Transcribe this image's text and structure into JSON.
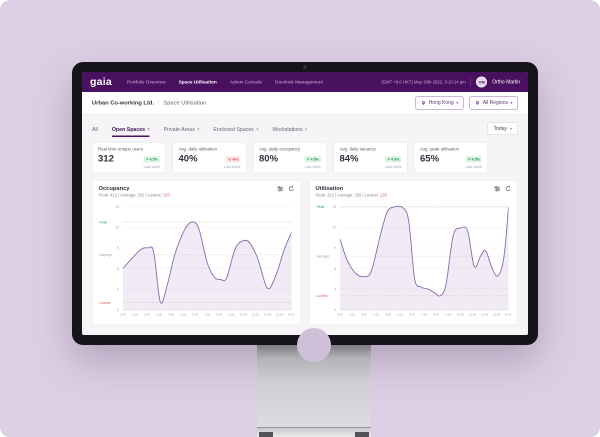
{
  "app": {
    "logo": "gaia",
    "nav_items": [
      {
        "label": "Portfolio Overview"
      },
      {
        "label": "Space Utilisation"
      },
      {
        "label": "Admin Console"
      },
      {
        "label": "Doorlock Management"
      }
    ],
    "active_nav": "Space Utilisation",
    "datetime": "(GMT +8:0 HKT) May 16th 2022, 3:10:14 pm",
    "user": {
      "initials": "OM",
      "name": "Ortho Martin"
    }
  },
  "breadcrumb": {
    "company": "Urban Co-working Ltd.",
    "separator": "|",
    "page": "Space Utilisation"
  },
  "filters": {
    "location": "Hong Kong",
    "region": "All Regions",
    "date_range": "Today"
  },
  "icons": {
    "caret_down": "▾",
    "arrow_up": "↗",
    "arrow_down": "↘"
  },
  "tabs": [
    {
      "label": "All"
    },
    {
      "label": "Open Spaces"
    },
    {
      "label": "Private Areas"
    },
    {
      "label": "Enclosed Spaces"
    },
    {
      "label": "Workstations"
    }
  ],
  "active_tab": "Open Spaces",
  "kpis": [
    {
      "label": "Real time unique users",
      "value": "312",
      "arrow": "↗",
      "delta": "4.5%",
      "period": "Last week"
    },
    {
      "label": "Avg. daily utilisation",
      "value": "40%",
      "arrow": "↘",
      "delta": "-6%",
      "period": "Last week"
    },
    {
      "label": "Avg. daily occupancy",
      "value": "80%",
      "arrow": "↗",
      "delta": "4.5%",
      "period": "Last week"
    },
    {
      "label": "Avg. daily vacancy",
      "value": "84%",
      "arrow": "↗",
      "delta": "4.9%",
      "period": "Last week"
    },
    {
      "label": "Avg. peak utilisation",
      "value": "65%",
      "arrow": "↗",
      "delta": "4.5%",
      "period": "Last week"
    }
  ],
  "charts": [
    {
      "title": "Occupancy",
      "stats_prefix": "Peak: 412  |  Average: 291  |  Lowest: ",
      "lowest_value": "197"
    },
    {
      "title": "Utilisation",
      "stats_prefix": "Peak: 312  |  Average: 259  |  Lowest: ",
      "lowest_value": "129"
    }
  ],
  "chart_data": [
    {
      "type": "area",
      "title": "Occupancy",
      "xlim": [
        0,
        14
      ],
      "ylim": [
        0,
        15.5
      ],
      "x_ticks": [
        "0:00",
        "1:00",
        "2:00",
        "3:00",
        "4:00",
        "5:00",
        "6:00",
        "7:00",
        "8:00",
        "9:00",
        "10:00",
        "11:00",
        "12:00",
        "13:00",
        "14:00"
      ],
      "y_ticks": [
        0,
        3,
        6,
        9,
        12,
        15
      ],
      "points": [
        [
          0,
          6.0
        ],
        [
          0.7,
          7.4
        ],
        [
          1.5,
          8.8
        ],
        [
          2.1,
          9.0
        ],
        [
          2.55,
          8.4
        ],
        [
          3.1,
          1.1
        ],
        [
          3.65,
          3.4
        ],
        [
          4.3,
          8.0
        ],
        [
          5.1,
          11.6
        ],
        [
          5.75,
          12.8
        ],
        [
          6.3,
          11.8
        ],
        [
          7.0,
          6.8
        ],
        [
          7.6,
          4.7
        ],
        [
          8.1,
          4.4
        ],
        [
          8.6,
          4.6
        ],
        [
          9.3,
          8.8
        ],
        [
          9.9,
          10.0
        ],
        [
          10.5,
          9.8
        ],
        [
          11.2,
          7.4
        ],
        [
          12.0,
          3.1
        ],
        [
          12.7,
          5.0
        ],
        [
          13.4,
          8.8
        ],
        [
          14,
          11.3
        ]
      ],
      "ref_lines": [
        {
          "label": "Peak",
          "value": 12.8,
          "text_color": "#2f9e5a",
          "line_color": "#8fcda6"
        },
        {
          "label": "Average",
          "value": 8.0,
          "text_color": "#a7a1af",
          "line_color": "#d6d1da"
        },
        {
          "label": "Lowest",
          "value": 1.0,
          "text_color": "#d65b52",
          "line_color": "#efb9b4"
        }
      ],
      "line_color": "#8a67ab",
      "fill_color": "rgba(138,103,171,0.13)"
    },
    {
      "type": "area",
      "title": "Utilisation",
      "xlim": [
        0,
        14
      ],
      "ylim": [
        0,
        15.5
      ],
      "x_ticks": [
        "0:00",
        "1:00",
        "2:00",
        "3:00",
        "4:00",
        "5:00",
        "6:00",
        "7:00",
        "8:00",
        "9:00",
        "10:00",
        "11:00",
        "12:00",
        "13:00",
        "14:00"
      ],
      "y_ticks": [
        0,
        3,
        6,
        9,
        12,
        15
      ],
      "points": [
        [
          0,
          10.3
        ],
        [
          0.6,
          7.2
        ],
        [
          1.3,
          5.3
        ],
        [
          2.0,
          4.8
        ],
        [
          2.6,
          5.6
        ],
        [
          3.3,
          10.5
        ],
        [
          3.9,
          14.2
        ],
        [
          4.5,
          15.0
        ],
        [
          5.2,
          14.9
        ],
        [
          5.7,
          13.0
        ],
        [
          6.2,
          4.5
        ],
        [
          6.7,
          3.3
        ],
        [
          7.3,
          3.0
        ],
        [
          7.9,
          2.4
        ],
        [
          8.3,
          2.0
        ],
        [
          8.8,
          3.6
        ],
        [
          9.4,
          10.8
        ],
        [
          10.0,
          11.9
        ],
        [
          10.6,
          11.5
        ],
        [
          11.15,
          6.3
        ],
        [
          11.7,
          7.9
        ],
        [
          12.1,
          8.6
        ],
        [
          12.6,
          6.2
        ],
        [
          13.1,
          4.9
        ],
        [
          13.6,
          7.5
        ],
        [
          14,
          15.0
        ]
      ],
      "ref_lines": [
        {
          "label": "Peak",
          "value": 15.0,
          "text_color": "#2f9e5a",
          "line_color": "#8fcda6"
        },
        {
          "label": "Average",
          "value": 7.8,
          "text_color": "#a7a1af",
          "line_color": "#d6d1da"
        },
        {
          "label": "Lowest",
          "value": 2.0,
          "text_color": "#d65b52",
          "line_color": "#efb9b4"
        }
      ],
      "line_color": "#8a67ab",
      "fill_color": "rgba(138,103,171,0.13)"
    }
  ],
  "colors": {
    "brand": "#4a1060",
    "positive": "#27984f",
    "negative": "#d35448",
    "chart_line": "#8a67ab",
    "lowest_red": "#d65b52",
    "peak_green": "#2f9e5a"
  }
}
